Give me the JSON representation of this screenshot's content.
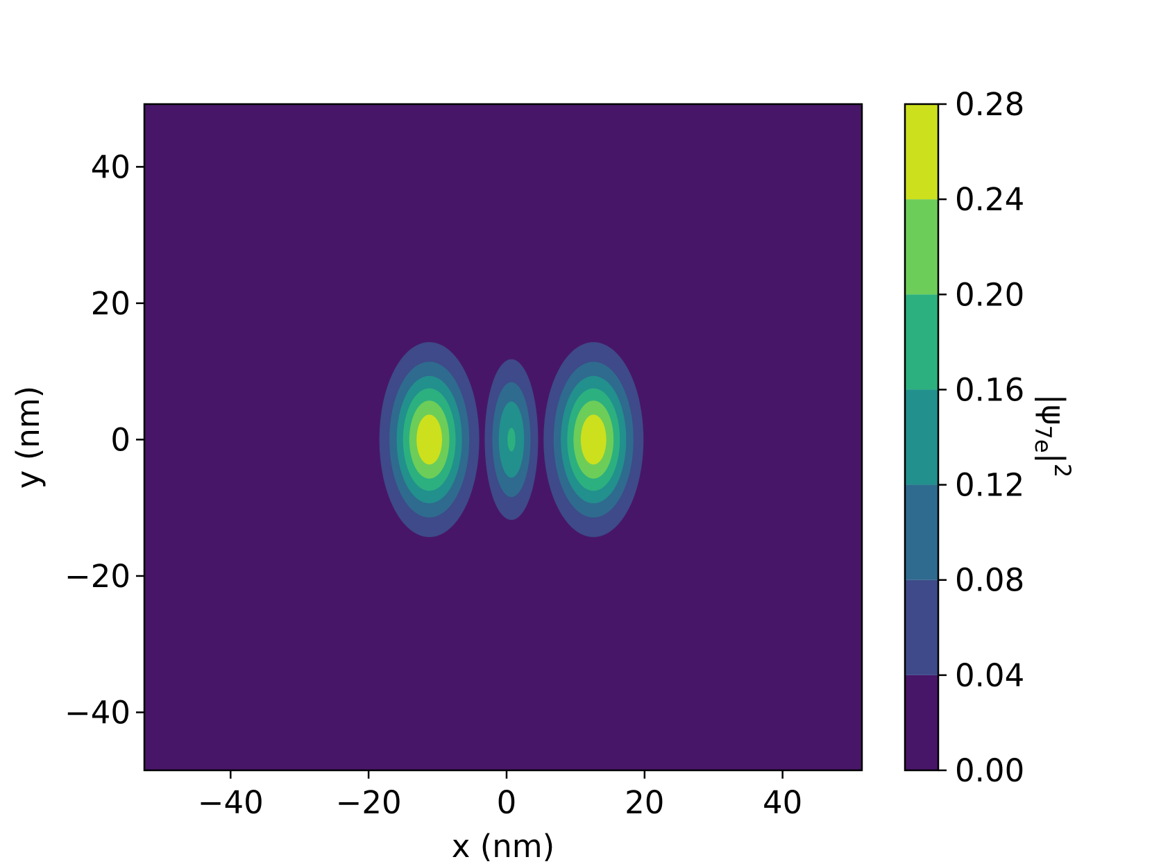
{
  "chart_data": {
    "type": "contourf",
    "title": "",
    "xlabel": "x (nm)",
    "ylabel": "y (nm)",
    "xlim": [
      -52.5,
      51.5
    ],
    "ylim": [
      -48.5,
      49.2
    ],
    "xticks": [
      -40,
      -20,
      0,
      20,
      40
    ],
    "yticks": [
      -40,
      -20,
      0,
      20,
      40
    ],
    "xtick_labels": [
      "−40",
      "−20",
      "0",
      "20",
      "40"
    ],
    "ytick_labels": [
      "−40",
      "−20",
      "0",
      "20",
      "40"
    ],
    "grid": false,
    "colorbar": {
      "label_base": "|ψ",
      "label_sub": "7e",
      "label_sup": "2",
      "levels": [
        0.0,
        0.04,
        0.08,
        0.12,
        0.16,
        0.2,
        0.24,
        0.28
      ],
      "tick_labels": [
        "0.00",
        "0.04",
        "0.08",
        "0.12",
        "0.16",
        "0.20",
        "0.24",
        "0.28"
      ],
      "colors": [
        "#481668",
        "#3e4a89",
        "#2f6b8e",
        "#22908d",
        "#2cb07f",
        "#6dcd59",
        "#cde01d"
      ]
    },
    "lobes": [
      {
        "name": "left lobe",
        "center_x": -11.2,
        "center_y": 0.0,
        "sigma_x": 3.7,
        "sigma_y": 7.3,
        "peak": 0.272
      },
      {
        "name": "center lobe",
        "center_x": 0.7,
        "center_y": 0.0,
        "sigma_x": 2.3,
        "sigma_y": 7.0,
        "peak": 0.165
      },
      {
        "name": "right lobe",
        "center_x": 12.6,
        "center_y": 0.0,
        "sigma_x": 3.7,
        "sigma_y": 7.3,
        "peak": 0.272
      }
    ]
  }
}
